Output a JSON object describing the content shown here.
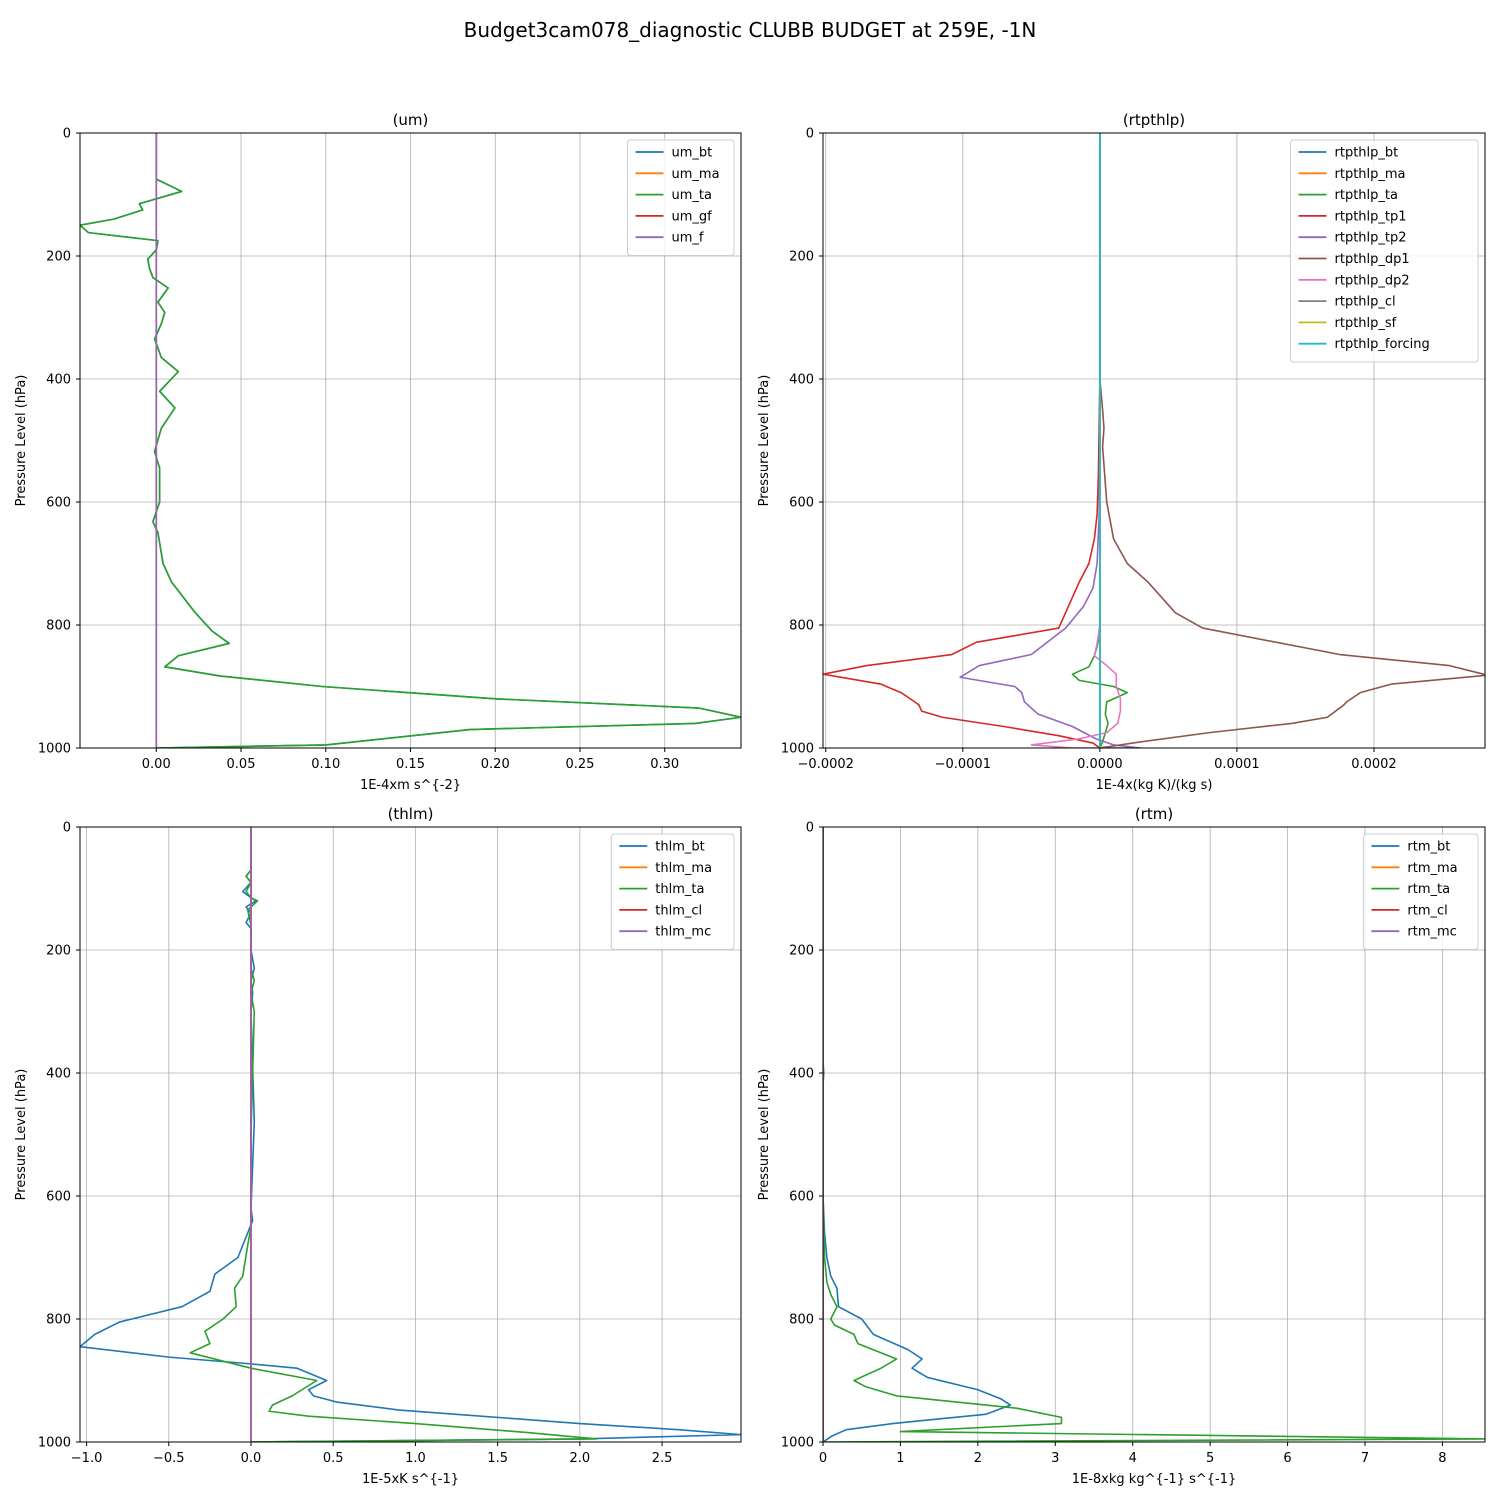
{
  "figure": {
    "title": "Budget3cam078_diagnostic CLUBB BUDGET at 259E, -1N"
  },
  "chart_data": [
    {
      "type": "line",
      "title": "(um)",
      "xlabel": "1E-4xm s^{-2}",
      "ylabel": "Pressure Level (hPa)",
      "xlim": [
        -0.045,
        0.345
      ],
      "ylim": [
        1000,
        0
      ],
      "xticks": [
        0.0,
        0.05,
        0.1,
        0.15,
        0.2,
        0.25,
        0.3
      ],
      "xtick_labels": [
        "0.00",
        "0.05",
        "0.10",
        "0.15",
        "0.20",
        "0.25",
        "0.30"
      ],
      "yticks": [
        0,
        200,
        400,
        600,
        800,
        1000
      ],
      "grid": true,
      "legend": "upper right",
      "series": [
        {
          "name": "um_bt",
          "color": "#1f77b4",
          "x": [
            0,
            0,
            0,
            0.015,
            -0.01,
            -0.008,
            -0.025,
            -0.045,
            -0.04,
            0.001,
            0.0,
            -0.005,
            -0.004,
            -0.002,
            0.007,
            0.001,
            0.005,
            0.003,
            -0.001,
            0.003,
            0.013,
            0.002,
            0.011,
            0.003,
            -0.001,
            0.002,
            0.002,
            -0.002,
            0.001,
            0.004,
            0.009,
            0.023,
            0.033,
            0.043,
            0.013,
            0.005,
            0.038,
            0.098,
            0.2,
            0.32,
            0.345,
            0.318,
            0.185,
            0.1,
            0.0
          ],
          "y": [
            0,
            50,
            75,
            95,
            115,
            125,
            140,
            150,
            162,
            175,
            190,
            205,
            220,
            235,
            252,
            275,
            292,
            310,
            335,
            365,
            388,
            420,
            447,
            480,
            518,
            545,
            600,
            632,
            650,
            700,
            730,
            780,
            810,
            830,
            850,
            868,
            883,
            900,
            920,
            935,
            950,
            960,
            970,
            995,
            1000
          ]
        },
        {
          "name": "um_ma",
          "color": "#ff7f0e",
          "x": [
            0,
            0
          ],
          "y": [
            0,
            1000
          ]
        },
        {
          "name": "um_ta",
          "color": "#2ca02c",
          "x": [
            0,
            0,
            0,
            0.015,
            -0.01,
            -0.008,
            -0.025,
            -0.045,
            -0.04,
            0.001,
            0.0,
            -0.005,
            -0.004,
            -0.002,
            0.007,
            0.001,
            0.005,
            0.003,
            -0.001,
            0.003,
            0.013,
            0.002,
            0.011,
            0.003,
            -0.001,
            0.002,
            0.002,
            -0.002,
            0.001,
            0.004,
            0.009,
            0.023,
            0.033,
            0.043,
            0.013,
            0.005,
            0.038,
            0.098,
            0.2,
            0.32,
            0.345,
            0.318,
            0.185,
            0.1,
            0.0
          ],
          "y": [
            0,
            50,
            75,
            95,
            115,
            125,
            140,
            150,
            162,
            175,
            190,
            205,
            220,
            235,
            252,
            275,
            292,
            310,
            335,
            365,
            388,
            420,
            447,
            480,
            518,
            545,
            600,
            632,
            650,
            700,
            730,
            780,
            810,
            830,
            850,
            868,
            883,
            900,
            920,
            935,
            950,
            960,
            970,
            995,
            1000
          ]
        },
        {
          "name": "um_gf",
          "color": "#d62728",
          "x": [
            0,
            0
          ],
          "y": [
            0,
            1000
          ]
        },
        {
          "name": "um_f",
          "color": "#9467bd",
          "x": [
            0,
            0
          ],
          "y": [
            0,
            1000
          ]
        }
      ]
    },
    {
      "type": "line",
      "title": "(rtpthlp)",
      "xlabel": "1E-4x(kg K)/(kg s)",
      "ylabel": "Pressure Level (hPa)",
      "xlim": [
        -0.000202,
        0.000281
      ],
      "ylim": [
        1000,
        0
      ],
      "xticks": [
        -0.0002,
        -0.0001,
        0.0,
        0.0001,
        0.0002
      ],
      "xtick_labels": [
        "−0.0002",
        "−0.0001",
        "0.0000",
        "0.0001",
        "0.0002"
      ],
      "yticks": [
        0,
        200,
        400,
        600,
        800,
        1000
      ],
      "grid": true,
      "legend": "upper right",
      "series": [
        {
          "name": "rtpthlp_bt",
          "color": "#1f77b4",
          "x": [
            0,
            0
          ],
          "y": [
            0,
            1000
          ]
        },
        {
          "name": "rtpthlp_ma",
          "color": "#ff7f0e",
          "x": [
            0,
            0
          ],
          "y": [
            0,
            1000
          ]
        },
        {
          "name": "rtpthlp_ta",
          "color": "#2ca02c",
          "x": [
            0,
            0,
            3e-07,
            -2e-06,
            -4e-06,
            -8e-06,
            -2e-05,
            -1.5e-05,
            1e-05,
            2e-05,
            5e-06,
            4e-06,
            6e-06,
            4e-06,
            2e-06,
            0.0
          ],
          "y": [
            0,
            780,
            810,
            835,
            850,
            868,
            880,
            890,
            900,
            910,
            925,
            945,
            960,
            975,
            990,
            1000
          ]
        },
        {
          "name": "rtpthlp_tp1",
          "color": "#d62728",
          "x": [
            0,
            0,
            -1e-06,
            -2e-06,
            -4e-06,
            -8e-06,
            -1.5e-05,
            -3e-05,
            -9e-05,
            -0.000108,
            -0.00017,
            -0.000202,
            -0.00016,
            -0.000145,
            -0.000135,
            -0.000132,
            -0.00013,
            -0.000115,
            -7e-05,
            -3e-05,
            -5e-06,
            0.0
          ],
          "y": [
            0,
            400,
            550,
            620,
            660,
            700,
            730,
            805,
            828,
            848,
            866,
            880,
            896,
            910,
            925,
            930,
            940,
            950,
            965,
            980,
            992,
            1000
          ]
        },
        {
          "name": "rtpthlp_tp2",
          "color": "#9467bd",
          "x": [
            0,
            0,
            -5e-07,
            -2e-06,
            -5e-06,
            -1.2e-05,
            -2.5e-05,
            -5e-05,
            -8.8e-05,
            -0.000102,
            -6.2e-05,
            -5.7e-05,
            -5.5e-05,
            -4.5e-05,
            -2e-05,
            -3e-06,
            1e-05,
            3e-05,
            0.0
          ],
          "y": [
            0,
            500,
            620,
            700,
            740,
            770,
            805,
            848,
            866,
            885,
            900,
            910,
            925,
            945,
            965,
            985,
            995,
            1000,
            1000
          ]
        },
        {
          "name": "rtpthlp_dp1",
          "color": "#8c564b",
          "x": [
            0,
            0,
            2e-06,
            3e-06,
            2e-06,
            5e-06,
            1e-05,
            2e-05,
            3.5e-05,
            5.5e-05,
            7.5e-05,
            0.000175,
            0.000255,
            0.00028,
            0.000281,
            0.000213,
            0.00019,
            0.00018,
            0.000178,
            0.000166,
            0.00014,
            8e-05,
            3e-05,
            0.0
          ],
          "y": [
            0,
            400,
            450,
            480,
            510,
            600,
            660,
            700,
            730,
            780,
            805,
            848,
            866,
            880,
            882,
            896,
            910,
            925,
            930,
            950,
            960,
            975,
            990,
            1000
          ]
        },
        {
          "name": "rtpthlp_dp2",
          "color": "#e377c2",
          "x": [
            0,
            0,
            -2e-06,
            -4e-06,
            5e-06,
            1.2e-05,
            1.2e-05,
            1.5e-05,
            1.5e-05,
            1.3e-05,
            5e-06,
            -1.5e-05,
            -5e-05,
            -2e-05,
            0.0
          ],
          "y": [
            0,
            800,
            830,
            850,
            866,
            880,
            900,
            920,
            940,
            960,
            975,
            985,
            995,
            1000,
            1000
          ]
        },
        {
          "name": "rtpthlp_cl",
          "color": "#7f7f7f",
          "x": [
            0,
            0
          ],
          "y": [
            0,
            1000
          ]
        },
        {
          "name": "rtpthlp_sf",
          "color": "#bcbd22",
          "x": [
            0,
            0
          ],
          "y": [
            0,
            1000
          ]
        },
        {
          "name": "rtpthlp_forcing",
          "color": "#17becf",
          "x": [
            0,
            0
          ],
          "y": [
            0,
            1000
          ]
        }
      ]
    },
    {
      "type": "line",
      "title": "(thlm)",
      "xlabel": "1E-5xK s^{-1}",
      "ylabel": "Pressure Level (hPa)",
      "xlim": [
        -1.04,
        2.98
      ],
      "ylim": [
        1000,
        0
      ],
      "xticks": [
        -1.0,
        -0.5,
        0.0,
        0.5,
        1.0,
        1.5,
        2.0,
        2.5
      ],
      "xtick_labels": [
        "−1.0",
        "−0.5",
        "0.0",
        "0.5",
        "1.0",
        "1.5",
        "2.0",
        "2.5"
      ],
      "yticks": [
        0,
        200,
        400,
        600,
        800,
        1000
      ],
      "grid": true,
      "legend": "upper right",
      "series": [
        {
          "name": "thlm_bt",
          "color": "#1f77b4",
          "x": [
            0,
            0,
            -0.03,
            0.0,
            -0.05,
            0.0,
            0.03,
            -0.03,
            0.0,
            -0.03,
            0.0,
            0.0,
            0.02,
            0.0,
            0.01,
            0.0,
            0.02,
            0.0,
            0.01,
            -0.02,
            -0.08,
            -0.22,
            -0.25,
            -0.42,
            -0.8,
            -0.95,
            -1.04,
            -0.5,
            0.0,
            0.28,
            0.46,
            0.35,
            0.38,
            0.52,
            0.9,
            1.4,
            2.0,
            2.6,
            2.98,
            2.0,
            0.0
          ],
          "y": [
            0,
            70,
            80,
            90,
            105,
            115,
            120,
            130,
            140,
            155,
            165,
            200,
            230,
            250,
            270,
            300,
            480,
            620,
            640,
            660,
            700,
            727,
            755,
            780,
            805,
            825,
            845,
            862,
            873,
            880,
            900,
            915,
            925,
            935,
            948,
            958,
            970,
            980,
            988,
            995,
            1000
          ]
        },
        {
          "name": "thlm_ma",
          "color": "#ff7f0e",
          "x": [
            0,
            0
          ],
          "y": [
            0,
            1000
          ]
        },
        {
          "name": "thlm_ta",
          "color": "#2ca02c",
          "x": [
            0,
            0,
            -0.03,
            0.0,
            -0.03,
            0.0,
            0.04,
            -0.02,
            0.0,
            0.0,
            0.02,
            0.0,
            0.02,
            0.0,
            0.0,
            -0.02,
            -0.05,
            -0.1,
            -0.09,
            -0.17,
            -0.28,
            -0.25,
            -0.37,
            0.0,
            0.4,
            0.25,
            0.13,
            0.11,
            0.35,
            1.0,
            1.7,
            2.1,
            0.0
          ],
          "y": [
            0,
            70,
            80,
            90,
            105,
            115,
            120,
            135,
            160,
            230,
            250,
            270,
            300,
            500,
            650,
            680,
            730,
            750,
            780,
            800,
            820,
            840,
            855,
            880,
            900,
            925,
            940,
            950,
            958,
            970,
            985,
            995,
            1000
          ]
        },
        {
          "name": "thlm_cl",
          "color": "#d62728",
          "x": [
            0,
            0
          ],
          "y": [
            0,
            1000
          ]
        },
        {
          "name": "thlm_mc",
          "color": "#9467bd",
          "x": [
            0,
            0
          ],
          "y": [
            0,
            1000
          ]
        }
      ]
    },
    {
      "type": "line",
      "title": "(rtm)",
      "xlabel": "1E-8xkg kg^{-1} s^{-1}",
      "ylabel": "Pressure Level (hPa)",
      "xlim": [
        0,
        8.55
      ],
      "ylim": [
        1000,
        0
      ],
      "xticks": [
        0,
        1,
        2,
        3,
        4,
        5,
        6,
        7,
        8
      ],
      "xtick_labels": [
        "0",
        "1",
        "2",
        "3",
        "4",
        "5",
        "6",
        "7",
        "8"
      ],
      "yticks": [
        0,
        200,
        400,
        600,
        800,
        1000
      ],
      "grid": true,
      "legend": "upper right",
      "series": [
        {
          "name": "rtm_bt",
          "color": "#1f77b4",
          "x": [
            0,
            0,
            0.01,
            0.0,
            0.0,
            0.02,
            0.05,
            0.1,
            0.18,
            0.2,
            0.5,
            0.65,
            1.1,
            1.28,
            1.15,
            1.35,
            2.0,
            2.3,
            2.42,
            2.1,
            1.3,
            0.9,
            0.3,
            0.12,
            0.0
          ],
          "y": [
            0,
            380,
            400,
            420,
            600,
            660,
            700,
            730,
            750,
            780,
            800,
            825,
            850,
            865,
            880,
            895,
            915,
            930,
            940,
            955,
            965,
            970,
            980,
            990,
            1000
          ]
        },
        {
          "name": "rtm_ma",
          "color": "#ff7f0e",
          "x": [
            0,
            0
          ],
          "y": [
            0,
            1000
          ]
        },
        {
          "name": "rtm_ta",
          "color": "#2ca02c",
          "x": [
            0,
            0,
            0.02,
            0.05,
            0.1,
            0.18,
            0.1,
            0.15,
            0.4,
            0.45,
            0.95,
            0.75,
            0.4,
            0.55,
            0.95,
            2.5,
            3.08,
            3.08,
            1.0,
            8.55,
            0.0
          ],
          "y": [
            0,
            600,
            700,
            740,
            760,
            780,
            800,
            810,
            825,
            840,
            865,
            880,
            900,
            910,
            925,
            945,
            960,
            970,
            983,
            995,
            1000
          ]
        },
        {
          "name": "rtm_cl",
          "color": "#d62728",
          "x": [
            0,
            0
          ],
          "y": [
            0,
            1000
          ]
        },
        {
          "name": "rtm_mc",
          "color": "#9467bd",
          "x": [
            0,
            0
          ],
          "y": [
            0,
            1000
          ]
        }
      ]
    }
  ]
}
